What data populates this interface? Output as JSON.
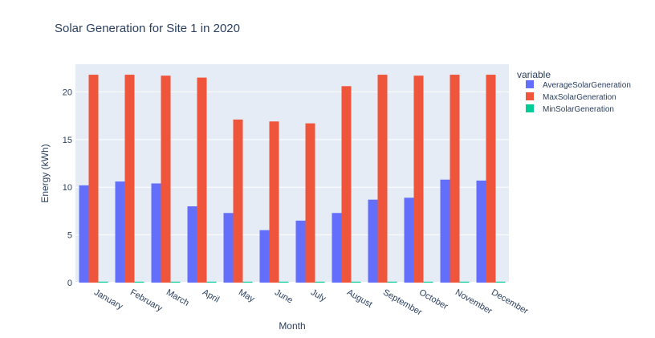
{
  "chart_data": {
    "type": "bar",
    "title": "Solar Generation for Site 1 in 2020",
    "xlabel": "Month",
    "ylabel": "Energy (kWh)",
    "categories": [
      "January",
      "February",
      "March",
      "April",
      "May",
      "June",
      "July",
      "August",
      "September",
      "October",
      "November",
      "December"
    ],
    "series": [
      {
        "name": "AverageSolarGeneration",
        "color": "#636efa",
        "values": [
          10.2,
          10.6,
          10.4,
          8.0,
          7.3,
          5.5,
          6.5,
          7.3,
          8.7,
          8.9,
          10.8,
          10.7
        ]
      },
      {
        "name": "MaxSolarGeneration",
        "color": "#ef553b",
        "values": [
          21.8,
          21.8,
          21.7,
          21.5,
          17.1,
          16.9,
          16.7,
          20.6,
          21.8,
          21.7,
          21.8,
          21.8
        ]
      },
      {
        "name": "MinSolarGeneration",
        "color": "#00cc96",
        "values": [
          0.1,
          0.1,
          0.1,
          0.1,
          0.1,
          0.1,
          0.1,
          0.1,
          0.1,
          0.1,
          0.1,
          0.1
        ]
      }
    ],
    "ylim": [
      0,
      22.9
    ],
    "yticks": [
      0,
      5,
      10,
      15,
      20
    ],
    "legend": {
      "title": "variable",
      "position": "right"
    },
    "grid": true,
    "plot_bgcolor": "#e5ecf6"
  }
}
